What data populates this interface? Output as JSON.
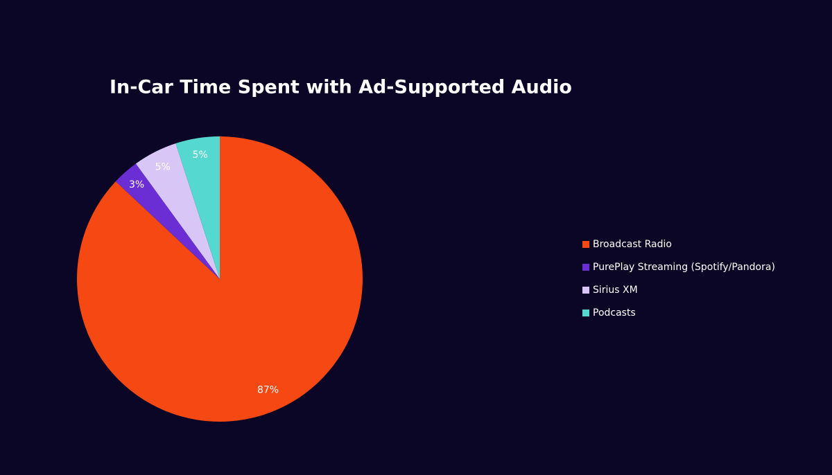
{
  "chart_data": {
    "type": "pie",
    "title": "In-Car Time Spent with Ad-Supported Audio",
    "categories": [
      "Broadcast Radio",
      "PurePlay Streaming (Spotify/Pandora)",
      "Sirius XM",
      "Podcasts"
    ],
    "values": [
      87,
      3,
      5,
      5
    ],
    "value_labels": [
      "87%",
      "3%",
      "5%",
      "5%"
    ],
    "colors": [
      "#f54812",
      "#6a2ed4",
      "#d8c6f6",
      "#55d8d0"
    ],
    "legend": "right"
  }
}
